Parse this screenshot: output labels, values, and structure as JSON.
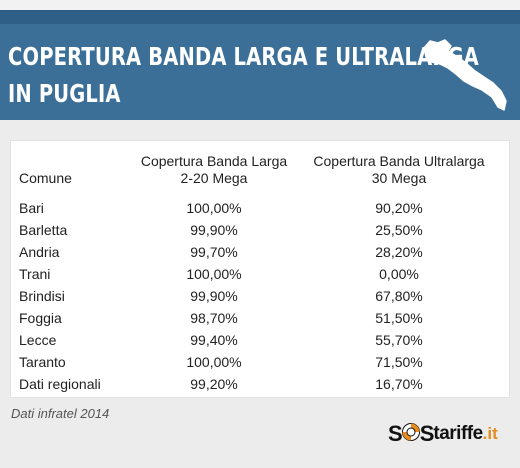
{
  "header": {
    "title_line1": "COPERTURA BANDA LARGA E ULTRALARGA",
    "title_line2": "IN PUGLIA",
    "bg_color": "#3b6f98",
    "map_icon": "puglia-map-icon"
  },
  "chart_data": {
    "type": "table",
    "columns": [
      "Comune",
      "Copertura Banda Larga 2-20 Mega",
      "Copertura Banda Ultralarga 30 Mega"
    ],
    "header_lines": [
      [
        "Comune"
      ],
      [
        "Copertura Banda Larga",
        "2-20 Mega"
      ],
      [
        "Copertura Banda Ultralarga",
        "30 Mega"
      ]
    ],
    "rows": [
      [
        "Bari",
        "100,00%",
        "90,20%"
      ],
      [
        "Barletta",
        "99,90%",
        "25,50%"
      ],
      [
        "Andria",
        "99,70%",
        "28,20%"
      ],
      [
        "Trani",
        "100,00%",
        "0,00%"
      ],
      [
        "Brindisi",
        "99,90%",
        "67,80%"
      ],
      [
        "Foggia",
        "98,70%",
        "51,50%"
      ],
      [
        "Lecce",
        "99,40%",
        "55,70%"
      ],
      [
        "Taranto",
        "100,00%",
        "71,50%"
      ],
      [
        "Dati regionali",
        "99,20%",
        "16,70%"
      ]
    ]
  },
  "footer": {
    "source": "Dati infratel 2014",
    "logo_s1": "S",
    "logo_s2": "S",
    "logo_name": "tariffe",
    "logo_tld": ".it",
    "logo_accent": "#e58a1f"
  }
}
